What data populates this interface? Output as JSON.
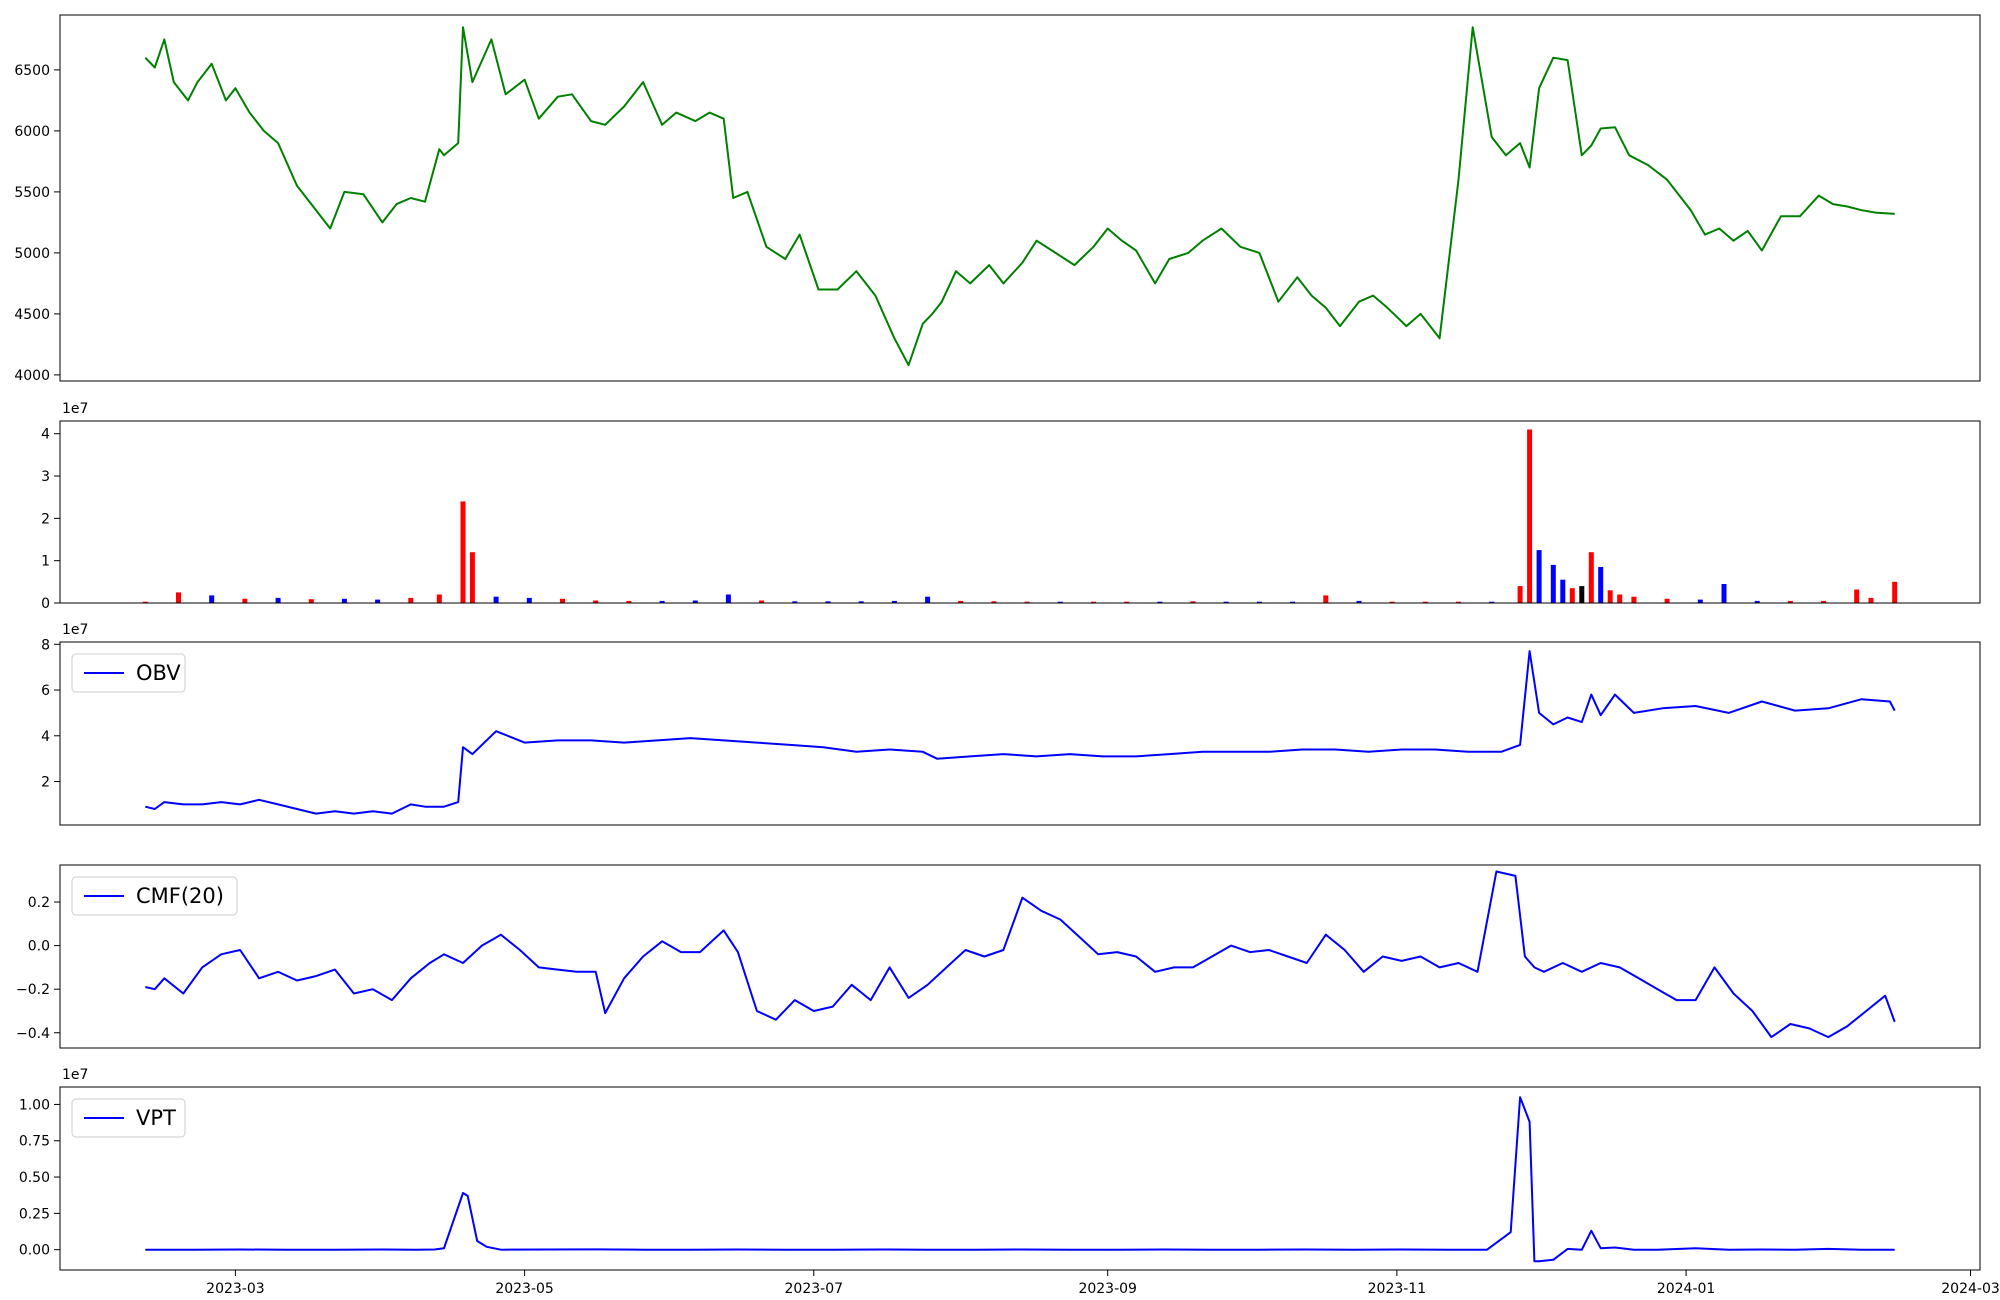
{
  "colors": {
    "price": "#008000",
    "up": "#ff0000",
    "down": "#0000ff",
    "flat": "#000000",
    "indicator": "#0000ff",
    "axis": "#000000"
  },
  "chart_data": [
    {
      "type": "line",
      "name": "price",
      "x": [
        "2023-02-10",
        "2023-02-12",
        "2023-02-14",
        "2023-02-16",
        "2023-02-19",
        "2023-02-21",
        "2023-02-24",
        "2023-02-27",
        "2023-03-01",
        "2023-03-04",
        "2023-03-07",
        "2023-03-10",
        "2023-03-14",
        "2023-03-17",
        "2023-03-21",
        "2023-03-24",
        "2023-03-28",
        "2023-04-01",
        "2023-04-04",
        "2023-04-07",
        "2023-04-10",
        "2023-04-13",
        "2023-04-14",
        "2023-04-17",
        "2023-04-18",
        "2023-04-20",
        "2023-04-24",
        "2023-04-27",
        "2023-05-01",
        "2023-05-04",
        "2023-05-08",
        "2023-05-11",
        "2023-05-15",
        "2023-05-18",
        "2023-05-22",
        "2023-05-26",
        "2023-05-30",
        "2023-06-02",
        "2023-06-06",
        "2023-06-09",
        "2023-06-12",
        "2023-06-14",
        "2023-06-17",
        "2023-06-21",
        "2023-06-25",
        "2023-06-28",
        "2023-07-02",
        "2023-07-06",
        "2023-07-10",
        "2023-07-14",
        "2023-07-18",
        "2023-07-21",
        "2023-07-24",
        "2023-07-26",
        "2023-07-28",
        "2023-07-31",
        "2023-08-03",
        "2023-08-07",
        "2023-08-10",
        "2023-08-14",
        "2023-08-17",
        "2023-08-21",
        "2023-08-25",
        "2023-08-29",
        "2023-09-01",
        "2023-09-04",
        "2023-09-07",
        "2023-09-11",
        "2023-09-14",
        "2023-09-18",
        "2023-09-21",
        "2023-09-25",
        "2023-09-29",
        "2023-10-03",
        "2023-10-07",
        "2023-10-11",
        "2023-10-14",
        "2023-10-17",
        "2023-10-20",
        "2023-10-24",
        "2023-10-27",
        "2023-10-30",
        "2023-11-03",
        "2023-11-06",
        "2023-11-10",
        "2023-11-14",
        "2023-11-17",
        "2023-11-21",
        "2023-11-24",
        "2023-11-27",
        "2023-11-29",
        "2023-12-01",
        "2023-12-04",
        "2023-12-07",
        "2023-12-10",
        "2023-12-12",
        "2023-12-14",
        "2023-12-17",
        "2023-12-20",
        "2023-12-24",
        "2023-12-28",
        "2024-01-02",
        "2024-01-05",
        "2024-01-08",
        "2024-01-11",
        "2024-01-14",
        "2024-01-17",
        "2024-01-21",
        "2024-01-25",
        "2024-01-29",
        "2024-02-01",
        "2024-02-04",
        "2024-02-07",
        "2024-02-10",
        "2024-02-14"
      ],
      "y": [
        6600,
        6520,
        6750,
        6400,
        6250,
        6400,
        6550,
        6250,
        6350,
        6150,
        6000,
        5900,
        5550,
        5400,
        5200,
        5500,
        5480,
        5250,
        5400,
        5450,
        5420,
        5850,
        5800,
        5900,
        6850,
        6400,
        6750,
        6300,
        6420,
        6100,
        6280,
        6300,
        6080,
        6050,
        6200,
        6400,
        6050,
        6150,
        6080,
        6150,
        6100,
        5450,
        5500,
        5050,
        4950,
        5150,
        4700,
        4700,
        4850,
        4650,
        4300,
        4080,
        4420,
        4500,
        4600,
        4850,
        4750,
        4900,
        4750,
        4920,
        5100,
        5000,
        4900,
        5050,
        5200,
        5100,
        5020,
        4750,
        4950,
        5000,
        5100,
        5200,
        5050,
        5000,
        4600,
        4800,
        4650,
        4550,
        4400,
        4600,
        4650,
        4550,
        4400,
        4500,
        4300,
        5600,
        6850,
        5950,
        5800,
        5900,
        5700,
        6350,
        6600,
        6580,
        5800,
        5880,
        6020,
        6030,
        5800,
        5720,
        5600,
        5350,
        5150,
        5200,
        5100,
        5180,
        5020,
        5300,
        5300,
        5470,
        5400,
        5380,
        5350,
        5330,
        5320
      ],
      "ylim": [
        3950,
        6950
      ],
      "yticks": [
        "4000",
        "4500",
        "5000",
        "5500",
        "6000",
        "6500"
      ],
      "ytick_values": [
        4000,
        4500,
        5000,
        5500,
        6000,
        6500
      ]
    },
    {
      "type": "bar",
      "name": "volume",
      "scale_label": "1e7",
      "x": [
        "2023-02-10",
        "2023-02-17",
        "2023-02-24",
        "2023-03-03",
        "2023-03-10",
        "2023-03-17",
        "2023-03-24",
        "2023-03-31",
        "2023-04-07",
        "2023-04-13",
        "2023-04-18",
        "2023-04-20",
        "2023-04-25",
        "2023-05-02",
        "2023-05-09",
        "2023-05-16",
        "2023-05-23",
        "2023-05-30",
        "2023-06-06",
        "2023-06-13",
        "2023-06-20",
        "2023-06-27",
        "2023-07-04",
        "2023-07-11",
        "2023-07-18",
        "2023-07-25",
        "2023-08-01",
        "2023-08-08",
        "2023-08-15",
        "2023-08-22",
        "2023-08-29",
        "2023-09-05",
        "2023-09-12",
        "2023-09-19",
        "2023-09-26",
        "2023-10-03",
        "2023-10-10",
        "2023-10-17",
        "2023-10-24",
        "2023-10-31",
        "2023-11-07",
        "2023-11-14",
        "2023-11-21",
        "2023-11-27",
        "2023-11-29",
        "2023-12-01",
        "2023-12-04",
        "2023-12-06",
        "2023-12-08",
        "2023-12-10",
        "2023-12-12",
        "2023-12-14",
        "2023-12-16",
        "2023-12-18",
        "2023-12-21",
        "2023-12-28",
        "2024-01-04",
        "2024-01-09",
        "2024-01-16",
        "2024-01-23",
        "2024-01-30",
        "2024-02-06",
        "2024-02-09",
        "2024-02-14"
      ],
      "values": [
        0.3,
        2.5,
        1.8,
        1.0,
        1.2,
        0.9,
        1.0,
        0.8,
        1.2,
        2.0,
        24.0,
        12.0,
        1.5,
        1.2,
        1.0,
        0.6,
        0.5,
        0.5,
        0.6,
        2.0,
        0.6,
        0.4,
        0.4,
        0.4,
        0.5,
        1.5,
        0.5,
        0.4,
        0.3,
        0.3,
        0.3,
        0.3,
        0.3,
        0.4,
        0.3,
        0.3,
        0.3,
        1.8,
        0.5,
        0.3,
        0.3,
        0.3,
        0.3,
        4.0,
        41.0,
        12.5,
        9.0,
        5.5,
        3.5,
        4.0,
        12.0,
        8.5,
        3.0,
        2.0,
        1.5,
        1.0,
        0.8,
        4.5,
        0.5,
        0.5,
        0.5,
        3.2,
        1.2,
        5.0
      ],
      "direction": [
        "up",
        "up",
        "down",
        "up",
        "down",
        "up",
        "down",
        "down",
        "up",
        "up",
        "up",
        "up",
        "down",
        "down",
        "up",
        "up",
        "up",
        "down",
        "down",
        "down",
        "up",
        "down",
        "down",
        "down",
        "down",
        "down",
        "up",
        "up",
        "up",
        "down",
        "up",
        "up",
        "down",
        "up",
        "down",
        "down",
        "down",
        "up",
        "down",
        "up",
        "up",
        "up",
        "down",
        "up",
        "up",
        "down",
        "down",
        "down",
        "up",
        "flat",
        "up",
        "down",
        "up",
        "up",
        "up",
        "up",
        "down",
        "down",
        "down",
        "up",
        "up",
        "up",
        "up",
        "up"
      ],
      "ylim": [
        0,
        43
      ],
      "yticks": [
        "0",
        "1",
        "2",
        "3",
        "4"
      ],
      "ytick_values": [
        0,
        10,
        20,
        30,
        40
      ]
    },
    {
      "type": "line",
      "name": "OBV",
      "legend": "OBV",
      "scale_label": "1e7",
      "x": [
        "2023-02-10",
        "2023-02-12",
        "2023-02-14",
        "2023-02-18",
        "2023-02-22",
        "2023-02-26",
        "2023-03-02",
        "2023-03-06",
        "2023-03-10",
        "2023-03-14",
        "2023-03-18",
        "2023-03-22",
        "2023-03-26",
        "2023-03-30",
        "2023-04-03",
        "2023-04-07",
        "2023-04-10",
        "2023-04-14",
        "2023-04-17",
        "2023-04-18",
        "2023-04-20",
        "2023-04-25",
        "2023-05-01",
        "2023-05-08",
        "2023-05-15",
        "2023-05-22",
        "2023-05-29",
        "2023-06-05",
        "2023-06-12",
        "2023-06-19",
        "2023-06-26",
        "2023-07-03",
        "2023-07-10",
        "2023-07-17",
        "2023-07-24",
        "2023-07-27",
        "2023-08-03",
        "2023-08-10",
        "2023-08-17",
        "2023-08-24",
        "2023-08-31",
        "2023-09-07",
        "2023-09-14",
        "2023-09-21",
        "2023-09-28",
        "2023-10-05",
        "2023-10-12",
        "2023-10-19",
        "2023-10-26",
        "2023-11-02",
        "2023-11-09",
        "2023-11-16",
        "2023-11-23",
        "2023-11-27",
        "2023-11-29",
        "2023-12-01",
        "2023-12-04",
        "2023-12-07",
        "2023-12-10",
        "2023-12-12",
        "2023-12-14",
        "2023-12-17",
        "2023-12-21",
        "2023-12-27",
        "2024-01-03",
        "2024-01-10",
        "2024-01-17",
        "2024-01-24",
        "2024-01-31",
        "2024-02-07",
        "2024-02-13",
        "2024-02-14"
      ],
      "y": [
        0.9,
        0.8,
        1.1,
        1.0,
        1.0,
        1.1,
        1.0,
        1.2,
        1.0,
        0.8,
        0.6,
        0.7,
        0.6,
        0.7,
        0.6,
        1.0,
        0.9,
        0.9,
        1.1,
        3.5,
        3.2,
        4.2,
        3.7,
        3.8,
        3.8,
        3.7,
        3.8,
        3.9,
        3.8,
        3.7,
        3.6,
        3.5,
        3.3,
        3.4,
        3.3,
        3.0,
        3.1,
        3.2,
        3.1,
        3.2,
        3.1,
        3.1,
        3.2,
        3.3,
        3.3,
        3.3,
        3.4,
        3.4,
        3.3,
        3.4,
        3.4,
        3.3,
        3.3,
        3.6,
        7.7,
        5.0,
        4.5,
        4.8,
        4.6,
        5.8,
        4.9,
        5.8,
        5.0,
        5.2,
        5.3,
        5.0,
        5.5,
        5.1,
        5.2,
        5.6,
        5.5,
        5.1
      ],
      "ylim": [
        0.1,
        8.1
      ],
      "yticks": [
        "2",
        "4",
        "6",
        "8"
      ],
      "ytick_values": [
        2,
        4,
        6,
        8
      ]
    },
    {
      "type": "line",
      "name": "CMF",
      "legend": "CMF(20)",
      "x": [
        "2023-02-10",
        "2023-02-12",
        "2023-02-14",
        "2023-02-18",
        "2023-02-22",
        "2023-02-26",
        "2023-03-02",
        "2023-03-06",
        "2023-03-10",
        "2023-03-14",
        "2023-03-18",
        "2023-03-22",
        "2023-03-26",
        "2023-03-30",
        "2023-04-03",
        "2023-04-07",
        "2023-04-11",
        "2023-04-14",
        "2023-04-18",
        "2023-04-22",
        "2023-04-26",
        "2023-04-30",
        "2023-05-04",
        "2023-05-08",
        "2023-05-12",
        "2023-05-16",
        "2023-05-18",
        "2023-05-22",
        "2023-05-26",
        "2023-05-30",
        "2023-06-03",
        "2023-06-07",
        "2023-06-12",
        "2023-06-15",
        "2023-06-19",
        "2023-06-23",
        "2023-06-27",
        "2023-07-01",
        "2023-07-05",
        "2023-07-09",
        "2023-07-13",
        "2023-07-17",
        "2023-07-21",
        "2023-07-25",
        "2023-07-29",
        "2023-08-02",
        "2023-08-06",
        "2023-08-10",
        "2023-08-14",
        "2023-08-18",
        "2023-08-22",
        "2023-08-26",
        "2023-08-30",
        "2023-09-03",
        "2023-09-07",
        "2023-09-11",
        "2023-09-15",
        "2023-09-19",
        "2023-09-23",
        "2023-09-27",
        "2023-10-01",
        "2023-10-05",
        "2023-10-09",
        "2023-10-13",
        "2023-10-17",
        "2023-10-21",
        "2023-10-25",
        "2023-10-29",
        "2023-11-02",
        "2023-11-06",
        "2023-11-10",
        "2023-11-14",
        "2023-11-18",
        "2023-11-22",
        "2023-11-26",
        "2023-11-28",
        "2023-11-30",
        "2023-12-02",
        "2023-12-06",
        "2023-12-10",
        "2023-12-14",
        "2023-12-18",
        "2023-12-22",
        "2023-12-26",
        "2023-12-30",
        "2024-01-03",
        "2024-01-07",
        "2024-01-11",
        "2024-01-15",
        "2024-01-19",
        "2024-01-23",
        "2024-01-27",
        "2024-01-31",
        "2024-02-04",
        "2024-02-08",
        "2024-02-12",
        "2024-02-14"
      ],
      "y": [
        -0.19,
        -0.2,
        -0.15,
        -0.22,
        -0.1,
        -0.04,
        -0.02,
        -0.15,
        -0.12,
        -0.16,
        -0.14,
        -0.11,
        -0.22,
        -0.2,
        -0.25,
        -0.15,
        -0.08,
        -0.04,
        -0.08,
        0.0,
        0.05,
        -0.02,
        -0.1,
        -0.11,
        -0.12,
        -0.12,
        -0.31,
        -0.15,
        -0.05,
        0.02,
        -0.03,
        -0.03,
        0.07,
        -0.03,
        -0.3,
        -0.34,
        -0.25,
        -0.3,
        -0.28,
        -0.18,
        -0.25,
        -0.1,
        -0.24,
        -0.18,
        -0.1,
        -0.02,
        -0.05,
        -0.02,
        0.22,
        0.16,
        0.12,
        0.04,
        -0.04,
        -0.03,
        -0.05,
        -0.12,
        -0.1,
        -0.1,
        -0.05,
        0.0,
        -0.03,
        -0.02,
        -0.05,
        -0.08,
        0.05,
        -0.02,
        -0.12,
        -0.05,
        -0.07,
        -0.05,
        -0.1,
        -0.08,
        -0.12,
        0.34,
        0.32,
        -0.05,
        -0.1,
        -0.12,
        -0.08,
        -0.12,
        -0.08,
        -0.1,
        -0.15,
        -0.2,
        -0.25,
        -0.25,
        -0.1,
        -0.22,
        -0.3,
        -0.42,
        -0.36,
        -0.38,
        -0.42,
        -0.37,
        -0.3,
        -0.23,
        -0.35
      ],
      "ylim": [
        -0.47,
        0.37
      ],
      "yticks": [
        "−0.4",
        "−0.2",
        "0.0",
        "0.2"
      ],
      "ytick_values": [
        -0.4,
        -0.2,
        0.0,
        0.2
      ]
    },
    {
      "type": "line",
      "name": "VPT",
      "legend": "VPT",
      "scale_label": "1e7",
      "x": [
        "2023-02-10",
        "2023-02-20",
        "2023-03-02",
        "2023-03-12",
        "2023-03-22",
        "2023-04-01",
        "2023-04-08",
        "2023-04-12",
        "2023-04-14",
        "2023-04-18",
        "2023-04-19",
        "2023-04-21",
        "2023-04-23",
        "2023-04-26",
        "2023-05-06",
        "2023-05-16",
        "2023-05-26",
        "2023-06-05",
        "2023-06-15",
        "2023-06-25",
        "2023-07-05",
        "2023-07-15",
        "2023-07-25",
        "2023-08-04",
        "2023-08-14",
        "2023-08-24",
        "2023-09-03",
        "2023-09-13",
        "2023-09-23",
        "2023-10-03",
        "2023-10-13",
        "2023-10-23",
        "2023-11-02",
        "2023-11-12",
        "2023-11-20",
        "2023-11-25",
        "2023-11-27",
        "2023-11-29",
        "2023-11-30",
        "2023-12-01",
        "2023-12-04",
        "2023-12-07",
        "2023-12-10",
        "2023-12-12",
        "2023-12-14",
        "2023-12-17",
        "2023-12-21",
        "2023-12-26",
        "2024-01-03",
        "2024-01-10",
        "2024-01-17",
        "2024-01-24",
        "2024-01-31",
        "2024-02-07",
        "2024-02-14"
      ],
      "y": [
        0.0,
        0.0,
        0.01,
        0.0,
        0.0,
        0.01,
        0.0,
        0.01,
        0.1,
        3.9,
        3.7,
        0.6,
        0.2,
        0.0,
        0.01,
        0.02,
        0.0,
        0.0,
        0.01,
        0.0,
        0.0,
        0.01,
        0.0,
        0.0,
        0.01,
        0.0,
        0.0,
        0.01,
        0.0,
        0.0,
        0.01,
        0.0,
        0.01,
        0.0,
        0.0,
        1.2,
        10.5,
        8.8,
        -0.8,
        -0.8,
        -0.7,
        0.05,
        0.0,
        1.3,
        0.1,
        0.15,
        0.0,
        0.0,
        0.1,
        0.0,
        0.01,
        0.0,
        0.05,
        0.0,
        0.0
      ],
      "ylim": [
        -1.4,
        11.2
      ],
      "yticks": [
        "0.00",
        "0.25",
        "0.50",
        "0.75",
        "1.00"
      ],
      "ytick_values": [
        0,
        2.5,
        5.0,
        7.5,
        10.0
      ]
    }
  ],
  "x_axis": {
    "range": [
      "2023-01-23",
      "2024-03-03"
    ],
    "tick_values": [
      "2023-03-01",
      "2023-05-01",
      "2023-07-01",
      "2023-09-01",
      "2023-11-01",
      "2024-01-01",
      "2024-03-01"
    ],
    "tick_labels": [
      "2023-03",
      "2023-05",
      "2023-07",
      "2023-09",
      "2023-11",
      "2024-01",
      "2024-03"
    ]
  }
}
